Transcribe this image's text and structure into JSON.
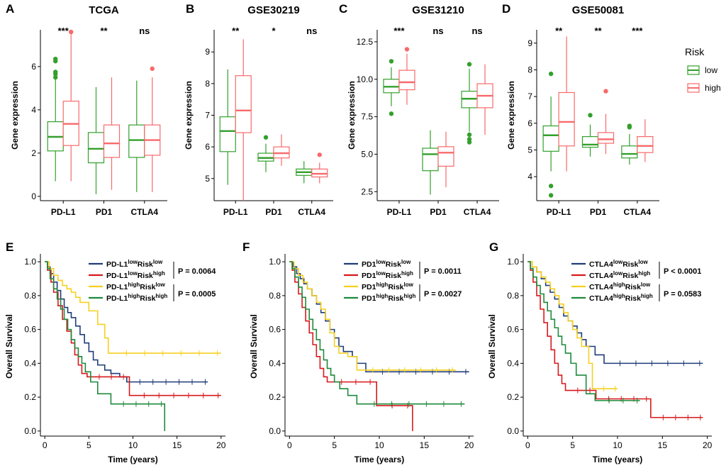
{
  "colors": {
    "low": "#33a02c",
    "high": "#f8696b",
    "km": [
      "#1f3d7a",
      "#d7191c",
      "#f5d020",
      "#1e8a3c"
    ]
  },
  "box_legend": {
    "title": "Risk",
    "items": [
      "low",
      "high"
    ]
  },
  "chart_data": [
    {
      "type": "box",
      "panel": "A",
      "title": "TCGA",
      "ylabel": "Gene expression",
      "ylim": [
        -0.2,
        7.7
      ],
      "yticks": [
        0,
        2,
        4,
        6
      ],
      "categories": [
        "PD-L1",
        "PD1",
        "CTLA4"
      ],
      "significance": [
        "***",
        "**",
        "ns"
      ],
      "series": [
        {
          "name": "low",
          "boxes": [
            {
              "min": 0.7,
              "q1": 2.1,
              "median": 2.75,
              "q3": 3.45,
              "max": 5.4,
              "outliers": [
                5.5,
                5.65,
                5.75,
                6.25,
                6.35
              ]
            },
            {
              "min": 0.1,
              "q1": 1.55,
              "median": 2.2,
              "q3": 2.95,
              "max": 5.05,
              "outliers": []
            },
            {
              "min": 0.2,
              "q1": 1.8,
              "median": 2.6,
              "q3": 3.3,
              "max": 5.35,
              "outliers": []
            }
          ]
        },
        {
          "name": "high",
          "boxes": [
            {
              "min": 0.7,
              "q1": 2.35,
              "median": 3.35,
              "q3": 4.4,
              "max": 7.5,
              "outliers": [
                7.6
              ]
            },
            {
              "min": 0.3,
              "q1": 1.8,
              "median": 2.45,
              "q3": 3.3,
              "max": 5.5,
              "outliers": []
            },
            {
              "min": 0.2,
              "q1": 1.9,
              "median": 2.6,
              "q3": 3.3,
              "max": 5.5,
              "outliers": [
                5.9
              ]
            }
          ]
        }
      ]
    },
    {
      "type": "box",
      "panel": "B",
      "title": "GSE30219",
      "ylabel": "Gene expression",
      "ylim": [
        4.3,
        9.7
      ],
      "yticks": [
        5,
        6,
        7,
        8,
        9
      ],
      "categories": [
        "PD-L1",
        "PD1",
        "CTLA4"
      ],
      "significance": [
        "**",
        "*",
        "ns"
      ],
      "series": [
        {
          "name": "low",
          "boxes": [
            {
              "min": 4.8,
              "q1": 5.85,
              "median": 6.5,
              "q3": 6.95,
              "max": 8.45,
              "outliers": []
            },
            {
              "min": 5.2,
              "q1": 5.55,
              "median": 5.65,
              "q3": 5.8,
              "max": 6.1,
              "outliers": [
                6.3
              ]
            },
            {
              "min": 4.85,
              "q1": 5.1,
              "median": 5.2,
              "q3": 5.3,
              "max": 5.55,
              "outliers": []
            }
          ]
        },
        {
          "name": "high",
          "boxes": [
            {
              "min": 4.3,
              "q1": 6.45,
              "median": 7.15,
              "q3": 8.25,
              "max": 9.4,
              "outliers": []
            },
            {
              "min": 5.4,
              "q1": 5.65,
              "median": 5.8,
              "q3": 6.0,
              "max": 6.4,
              "outliers": []
            },
            {
              "min": 4.85,
              "q1": 5.05,
              "median": 5.15,
              "q3": 5.3,
              "max": 5.5,
              "outliers": [
                5.75
              ]
            }
          ]
        }
      ]
    },
    {
      "type": "box",
      "panel": "C",
      "title": "GSE31210",
      "ylabel": "Gene expression",
      "ylim": [
        1.9,
        13.3
      ],
      "yticks": [
        2.5,
        5.0,
        7.5,
        10.0,
        12.5
      ],
      "categories": [
        "PD-L1",
        "PD1",
        "CTLA4"
      ],
      "significance": [
        "***",
        "ns",
        "ns"
      ],
      "series": [
        {
          "name": "low",
          "boxes": [
            {
              "min": 8.2,
              "q1": 9.1,
              "median": 9.5,
              "q3": 10.0,
              "max": 10.8,
              "outliers": [
                7.7,
                11.2
              ]
            },
            {
              "min": 2.3,
              "q1": 3.9,
              "median": 5.0,
              "q3": 5.4,
              "max": 6.6,
              "outliers": []
            },
            {
              "min": 6.5,
              "q1": 8.1,
              "median": 8.7,
              "q3": 9.2,
              "max": 10.7,
              "outliers": [
                5.8,
                6.0,
                6.3,
                11.0
              ]
            }
          ]
        },
        {
          "name": "high",
          "boxes": [
            {
              "min": 8.3,
              "q1": 9.3,
              "median": 9.8,
              "q3": 10.6,
              "max": 11.7,
              "outliers": [
                12.0
              ]
            },
            {
              "min": 2.8,
              "q1": 4.2,
              "median": 5.1,
              "q3": 5.5,
              "max": 6.5,
              "outliers": []
            },
            {
              "min": 6.3,
              "q1": 8.1,
              "median": 8.9,
              "q3": 9.7,
              "max": 11.0,
              "outliers": []
            }
          ]
        }
      ]
    },
    {
      "type": "box",
      "panel": "D",
      "title": "GSE50081",
      "ylabel": "Gene expression",
      "ylim": [
        3.1,
        9.5
      ],
      "yticks": [
        4,
        5,
        6,
        7,
        8,
        9
      ],
      "categories": [
        "PD-L1",
        "PD1",
        "CTLA4"
      ],
      "significance": [
        "**",
        "**",
        "***"
      ],
      "series": [
        {
          "name": "low",
          "boxes": [
            {
              "min": 4.2,
              "q1": 4.95,
              "median": 5.55,
              "q3": 5.9,
              "max": 7.0,
              "outliers": [
                3.3,
                3.65,
                7.85
              ]
            },
            {
              "min": 4.75,
              "q1": 5.1,
              "median": 5.2,
              "q3": 5.5,
              "max": 5.95,
              "outliers": [
                6.3
              ]
            },
            {
              "min": 4.45,
              "q1": 4.7,
              "median": 4.85,
              "q3": 5.15,
              "max": 5.6,
              "outliers": [
                5.85,
                5.9
              ]
            }
          ]
        },
        {
          "name": "high",
          "boxes": [
            {
              "min": 4.2,
              "q1": 5.15,
              "median": 6.05,
              "q3": 7.15,
              "max": 9.25,
              "outliers": []
            },
            {
              "min": 4.85,
              "q1": 5.25,
              "median": 5.4,
              "q3": 5.65,
              "max": 6.35,
              "outliers": [
                7.2
              ]
            },
            {
              "min": 4.55,
              "q1": 4.9,
              "median": 5.15,
              "q3": 5.5,
              "max": 6.15,
              "outliers": []
            }
          ]
        }
      ]
    },
    {
      "type": "line",
      "subtype": "kaplan-meier",
      "panel": "E",
      "xlabel": "Time (years)",
      "ylabel": "Overall Survival",
      "xlim": [
        -0.5,
        20.5
      ],
      "ylim": [
        -0.03,
        1.03
      ],
      "xticks": [
        0,
        5,
        10,
        15,
        20
      ],
      "yticks": [
        0.0,
        0.2,
        0.4,
        0.6,
        0.8,
        1.0
      ],
      "p_values": [
        "P = 0.0064",
        "P = 0.0005"
      ],
      "series": [
        {
          "name": "PD-L1lowRisklow",
          "gene": "PD-L1",
          "gene_level": "low",
          "risk_level": "low",
          "x": [
            0,
            0.3,
            0.6,
            1.0,
            1.4,
            1.8,
            2.2,
            2.6,
            3.0,
            3.5,
            4.0,
            4.5,
            5.0,
            5.5,
            6.0,
            6.8,
            7.5,
            8.5,
            9.3,
            18.5
          ],
          "y": [
            1.0,
            0.97,
            0.93,
            0.88,
            0.83,
            0.78,
            0.73,
            0.7,
            0.67,
            0.62,
            0.57,
            0.52,
            0.47,
            0.42,
            0.39,
            0.36,
            0.34,
            0.32,
            0.29,
            0.29
          ]
        },
        {
          "name": "PD-L1lowRiskhigh",
          "gene": "PD-L1",
          "gene_level": "low",
          "risk_level": "high",
          "x": [
            0,
            0.3,
            0.7,
            1.0,
            1.5,
            2.0,
            2.5,
            3.0,
            3.4,
            3.8,
            4.2,
            4.8,
            9.2,
            9.6,
            20
          ],
          "y": [
            1.0,
            0.95,
            0.88,
            0.82,
            0.74,
            0.66,
            0.59,
            0.52,
            0.45,
            0.39,
            0.34,
            0.32,
            0.32,
            0.21,
            0.21
          ]
        },
        {
          "name": "PD-L1highRisklow",
          "gene": "PD-L1",
          "gene_level": "high",
          "risk_level": "low",
          "x": [
            0,
            0.5,
            1.0,
            1.5,
            2.0,
            2.5,
            3.0,
            3.5,
            4.0,
            5.0,
            6.0,
            6.8,
            7.2,
            20
          ],
          "y": [
            1.0,
            0.96,
            0.92,
            0.89,
            0.86,
            0.84,
            0.82,
            0.79,
            0.76,
            0.71,
            0.63,
            0.55,
            0.46,
            0.46
          ]
        },
        {
          "name": "PD-L1highRiskhigh",
          "gene": "PD-L1",
          "gene_level": "high",
          "risk_level": "high",
          "x": [
            0,
            0.3,
            0.6,
            1.0,
            1.4,
            1.8,
            2.2,
            2.6,
            3.0,
            3.4,
            3.8,
            4.2,
            4.6,
            5.2,
            6.0,
            7.5,
            13.5,
            13.6
          ],
          "y": [
            1.0,
            0.96,
            0.9,
            0.84,
            0.78,
            0.72,
            0.66,
            0.6,
            0.54,
            0.49,
            0.44,
            0.4,
            0.35,
            0.29,
            0.22,
            0.16,
            0.16,
            0.0
          ]
        }
      ]
    },
    {
      "type": "line",
      "subtype": "kaplan-meier",
      "panel": "F",
      "xlabel": "Time (years)",
      "ylabel": "Overall Survival",
      "xlim": [
        -0.5,
        20.5
      ],
      "ylim": [
        -0.03,
        1.03
      ],
      "xticks": [
        0,
        5,
        10,
        15,
        20
      ],
      "yticks": [
        0.0,
        0.2,
        0.4,
        0.6,
        0.8,
        1.0
      ],
      "p_values": [
        "P = 0.0011",
        "P = 0.0027"
      ],
      "series": [
        {
          "name": "PD1lowRisklow",
          "gene": "PD1",
          "gene_level": "low",
          "risk_level": "low",
          "x": [
            0,
            0.4,
            0.8,
            1.2,
            1.6,
            2.0,
            2.5,
            3.0,
            3.5,
            4.0,
            4.5,
            5.0,
            5.5,
            6.0,
            7.0,
            7.5,
            8.5,
            20
          ],
          "y": [
            1.0,
            0.97,
            0.93,
            0.9,
            0.87,
            0.84,
            0.8,
            0.75,
            0.7,
            0.65,
            0.6,
            0.55,
            0.5,
            0.47,
            0.44,
            0.4,
            0.35,
            0.35
          ]
        },
        {
          "name": "PD1lowRiskhigh",
          "gene": "PD1",
          "gene_level": "low",
          "risk_level": "high",
          "x": [
            0,
            0.3,
            0.6,
            1.0,
            1.4,
            1.8,
            2.2,
            2.6,
            3.0,
            3.4,
            3.8,
            4.2,
            9.3,
            9.7,
            13.5,
            13.7
          ],
          "y": [
            1.0,
            0.95,
            0.88,
            0.81,
            0.73,
            0.65,
            0.58,
            0.51,
            0.44,
            0.37,
            0.32,
            0.29,
            0.29,
            0.15,
            0.15,
            0.0
          ]
        },
        {
          "name": "PD1highRisklow",
          "gene": "PD1",
          "gene_level": "high",
          "risk_level": "low",
          "x": [
            0,
            0.5,
            1.0,
            1.5,
            2.0,
            2.5,
            3.0,
            3.5,
            4.0,
            4.5,
            5.0,
            5.5,
            6.5,
            7.5,
            18.5
          ],
          "y": [
            1.0,
            0.96,
            0.92,
            0.88,
            0.84,
            0.8,
            0.76,
            0.72,
            0.66,
            0.58,
            0.5,
            0.46,
            0.44,
            0.36,
            0.36
          ]
        },
        {
          "name": "PD1highRiskhigh",
          "gene": "PD1",
          "gene_level": "high",
          "risk_level": "high",
          "x": [
            0,
            0.3,
            0.6,
            1.0,
            1.4,
            1.8,
            2.2,
            2.6,
            3.0,
            3.4,
            3.8,
            4.2,
            4.6,
            5.0,
            5.6,
            6.5,
            7.5,
            19.5
          ],
          "y": [
            1.0,
            0.96,
            0.91,
            0.85,
            0.79,
            0.72,
            0.66,
            0.6,
            0.54,
            0.48,
            0.42,
            0.37,
            0.33,
            0.29,
            0.25,
            0.21,
            0.16,
            0.16
          ]
        }
      ]
    },
    {
      "type": "line",
      "subtype": "kaplan-meier",
      "panel": "G",
      "xlabel": "Time (years)",
      "ylabel": "Overall Survival",
      "xlim": [
        -0.5,
        20.5
      ],
      "ylim": [
        -0.03,
        1.03
      ],
      "xticks": [
        0,
        5,
        10,
        15,
        20
      ],
      "yticks": [
        0.0,
        0.2,
        0.4,
        0.6,
        0.8,
        1.0
      ],
      "p_values": [
        "P < 0.0001",
        "P = 0.0583"
      ],
      "series": [
        {
          "name": "CTLA4lowRisklow",
          "gene": "CTLA4",
          "gene_level": "low",
          "risk_level": "low",
          "x": [
            0,
            0.5,
            1.0,
            1.5,
            2.0,
            2.5,
            3.0,
            3.5,
            4.0,
            4.5,
            5.0,
            5.5,
            6.0,
            6.5,
            7.5,
            8.5,
            19.5
          ],
          "y": [
            1.0,
            0.97,
            0.94,
            0.9,
            0.86,
            0.82,
            0.78,
            0.73,
            0.68,
            0.65,
            0.62,
            0.58,
            0.54,
            0.5,
            0.45,
            0.4,
            0.4
          ]
        },
        {
          "name": "CTLA4lowRiskhigh",
          "gene": "CTLA4",
          "gene_level": "low",
          "risk_level": "high",
          "x": [
            0,
            0.3,
            0.6,
            1.0,
            1.4,
            1.8,
            2.2,
            2.6,
            3.0,
            3.4,
            3.8,
            4.2,
            7.2,
            7.6,
            13.5,
            13.7,
            19.5
          ],
          "y": [
            1.0,
            0.95,
            0.88,
            0.8,
            0.72,
            0.64,
            0.56,
            0.48,
            0.4,
            0.33,
            0.28,
            0.24,
            0.24,
            0.19,
            0.19,
            0.08,
            0.08
          ]
        },
        {
          "name": "CTLA4highRisklow",
          "gene": "CTLA4",
          "gene_level": "high",
          "risk_level": "low",
          "x": [
            0,
            0.5,
            1.0,
            1.5,
            2.0,
            2.5,
            3.0,
            3.5,
            4.0,
            4.5,
            5.0,
            5.5,
            6.0,
            6.8,
            7.2,
            10.0
          ],
          "y": [
            1.0,
            0.97,
            0.94,
            0.91,
            0.88,
            0.84,
            0.8,
            0.75,
            0.7,
            0.65,
            0.6,
            0.55,
            0.5,
            0.4,
            0.25,
            0.25
          ]
        },
        {
          "name": "CTLA4highRiskhigh",
          "gene": "CTLA4",
          "gene_level": "high",
          "risk_level": "high",
          "x": [
            0,
            0.3,
            0.6,
            1.0,
            1.4,
            1.8,
            2.2,
            2.6,
            3.0,
            3.4,
            3.8,
            4.2,
            4.8,
            5.4,
            6.5,
            7.5,
            12.5
          ],
          "y": [
            1.0,
            0.96,
            0.91,
            0.86,
            0.81,
            0.76,
            0.71,
            0.66,
            0.61,
            0.56,
            0.51,
            0.46,
            0.4,
            0.33,
            0.22,
            0.18,
            0.18
          ]
        }
      ]
    }
  ]
}
